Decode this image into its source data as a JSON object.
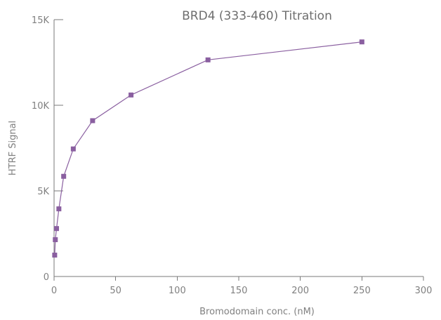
{
  "chart_data": {
    "type": "line",
    "title": "BRD4 (333-460) Titration",
    "xlabel": "Bromodomain conc. (nM)",
    "ylabel": "HTRF Signal",
    "xlim": [
      0,
      300
    ],
    "ylim": [
      0,
      15000
    ],
    "x_ticks": [
      0,
      50,
      100,
      150,
      200,
      250,
      300
    ],
    "x_tick_labels": [
      "0",
      "50",
      "100",
      "150",
      "200",
      "250",
      "300"
    ],
    "y_ticks": [
      0,
      5000,
      10000,
      15000
    ],
    "y_tick_labels": [
      "0",
      "5K",
      "10K",
      "15K"
    ],
    "grid": false,
    "legend": "none",
    "series_color": "#8a5fa0",
    "series": [
      {
        "x": [
          0.5,
          1,
          2,
          3.9,
          7.8,
          15.6,
          31.3,
          62.5,
          125,
          250
        ],
        "y": [
          1250,
          2150,
          2800,
          3950,
          5850,
          7450,
          9100,
          10600,
          12650,
          13700
        ]
      }
    ]
  }
}
